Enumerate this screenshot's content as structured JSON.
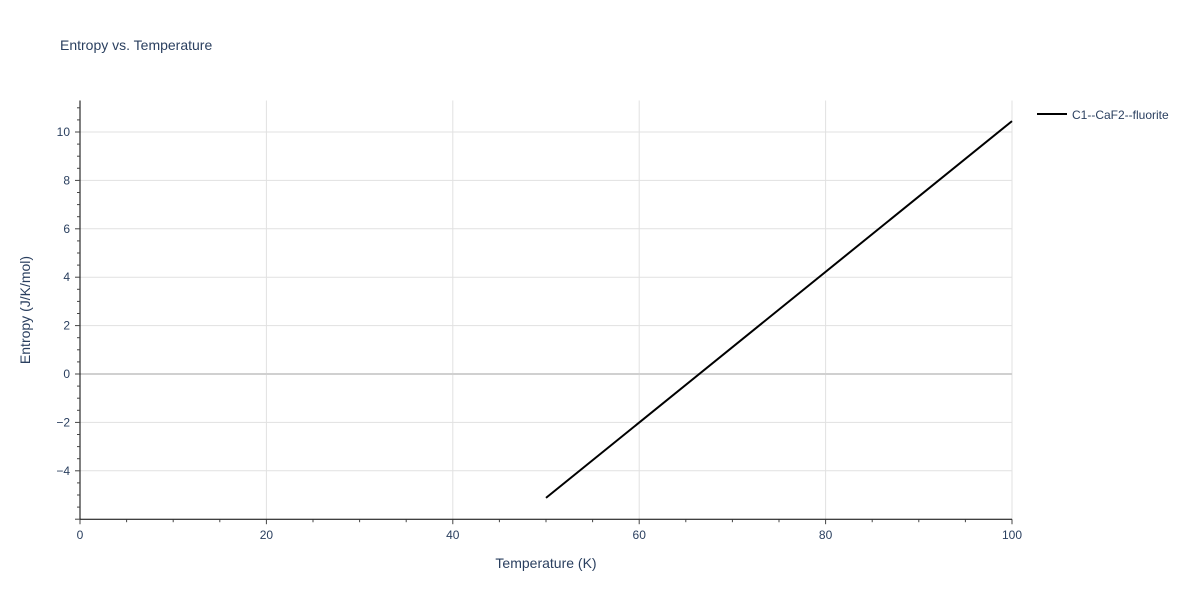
{
  "chart_data": {
    "type": "line",
    "title": "Entropy vs. Temperature",
    "xlabel": "Temperature (K)",
    "ylabel": "Entropy (J/K/mol)",
    "xlim": [
      0,
      100
    ],
    "ylim": [
      -6,
      11.3
    ],
    "xticks": [
      0,
      20,
      40,
      60,
      80,
      100
    ],
    "xtick_labels": [
      "0",
      "20",
      "40",
      "60",
      "80",
      "100"
    ],
    "yticks": [
      -4,
      -2,
      0,
      2,
      4,
      6,
      8,
      10
    ],
    "ytick_labels": [
      "−4",
      "−2",
      "0",
      "2",
      "4",
      "6",
      "8",
      "10"
    ],
    "grid": true,
    "legend_position": "top-right",
    "series": [
      {
        "name": "C1--CaF2--fluorite",
        "color": "#000000",
        "x": [
          50,
          100
        ],
        "y": [
          -5.12,
          10.45
        ]
      }
    ]
  }
}
